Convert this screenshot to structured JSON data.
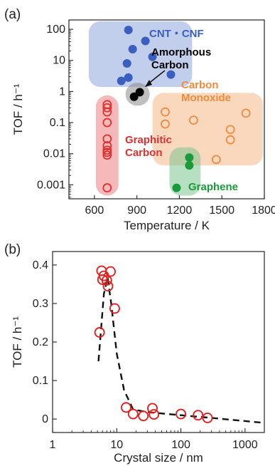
{
  "chart_data": [
    {
      "panel_label": "(a)",
      "type": "scatter",
      "xlabel": "Temperature / K",
      "ylabel": "TOF / h⁻¹",
      "xlim": [
        420,
        1800
      ],
      "ylim_log10": [
        -3.45,
        2.3
      ],
      "y_scale": "log",
      "x_ticks": [
        600,
        900,
        1200,
        1500,
        1800
      ],
      "y_ticks": [
        {
          "v": 100,
          "t": "100"
        },
        {
          "v": 10,
          "t": "10"
        },
        {
          "v": 1,
          "t": "1"
        },
        {
          "v": 0.1,
          "t": "0.1"
        },
        {
          "v": 0.01,
          "t": "0.01"
        },
        {
          "v": 0.001,
          "t": "0.001"
        }
      ],
      "groups": [
        {
          "label": "CNT・CNF",
          "color": "#3a5fc0",
          "region_color": "#8ea6dd",
          "marker": "filled",
          "points": [
            [
              840,
              95
            ],
            [
              870,
              23
            ],
            [
              830,
              8
            ],
            [
              960,
              42
            ],
            [
              1010,
              13
            ],
            [
              840,
              2.8
            ],
            [
              790,
              2.2
            ],
            [
              1140,
              3.5
            ]
          ]
        },
        {
          "label": "Amorphous Carbon",
          "color": "#000000",
          "region_color": "#8a8a8a",
          "marker": "filled",
          "points": [
            [
              880,
              0.68
            ],
            [
              920,
              0.95
            ]
          ]
        },
        {
          "label": "Carbon Monoxide",
          "color": "#f08a3c",
          "region_color": "#f6b888",
          "marker": "open",
          "points": [
            [
              1100,
              0.22
            ],
            [
              1100,
              0.09
            ],
            [
              1300,
              0.12
            ],
            [
              1560,
              0.06
            ],
            [
              1560,
              0.028
            ],
            [
              1670,
              0.2
            ],
            [
              1460,
              0.0065
            ]
          ]
        },
        {
          "label": "Graphitic Carbon",
          "color": "#e03030",
          "region_color": "#ee8080",
          "marker": "open",
          "points": [
            [
              690,
              0.38
            ],
            [
              690,
              0.3
            ],
            [
              690,
              0.22
            ],
            [
              690,
              0.1
            ],
            [
              690,
              0.03
            ],
            [
              690,
              0.018
            ],
            [
              690,
              0.013
            ],
            [
              690,
              0.011
            ],
            [
              690,
              0.009
            ],
            [
              690,
              0.0008
            ]
          ]
        },
        {
          "label": "Graphene",
          "color": "#1a9a3a",
          "region_color": "#7cc58f",
          "marker": "filled",
          "points": [
            [
              1270,
              0.0075
            ],
            [
              1270,
              0.0042
            ],
            [
              1180,
              0.0008
            ]
          ]
        }
      ]
    },
    {
      "panel_label": "(b)",
      "type": "scatter",
      "xlabel": "Crystal size / nm",
      "ylabel": "TOF / h⁻¹",
      "x_scale": "log",
      "xlim": [
        1,
        2000
      ],
      "ylim": [
        -0.035,
        0.435
      ],
      "x_ticks": [
        {
          "v": 1,
          "t": "1"
        },
        {
          "v": 10,
          "t": "10"
        },
        {
          "v": 100,
          "t": "100"
        },
        {
          "v": 1000,
          "t": "1000"
        }
      ],
      "y_ticks": [
        0,
        0.1,
        0.2,
        0.3,
        0.4
      ],
      "marker_color": "#e02020",
      "points": [
        [
          5.4,
          0.225
        ],
        [
          5.8,
          0.385
        ],
        [
          6.0,
          0.362
        ],
        [
          6.3,
          0.372
        ],
        [
          7.0,
          0.36
        ],
        [
          7.3,
          0.345
        ],
        [
          8.0,
          0.383
        ],
        [
          9.3,
          0.287
        ],
        [
          14.0,
          0.03
        ],
        [
          18.0,
          0.013
        ],
        [
          26.0,
          0.008
        ],
        [
          36.0,
          0.028
        ],
        [
          38.0,
          0.012
        ],
        [
          100.0,
          0.013
        ],
        [
          185.0,
          0.01
        ],
        [
          260.0,
          0.003
        ]
      ],
      "trend_line": [
        [
          5.2,
          0.15
        ],
        [
          6.3,
          0.325
        ],
        [
          7.2,
          0.368
        ],
        [
          8.2,
          0.3
        ],
        [
          10.0,
          0.17
        ],
        [
          13.0,
          0.075
        ],
        [
          18.0,
          0.025
        ],
        [
          30.0,
          0.018
        ],
        [
          100.0,
          0.01
        ],
        [
          300.0,
          0.003
        ],
        [
          2000.0,
          -0.01
        ]
      ]
    }
  ]
}
